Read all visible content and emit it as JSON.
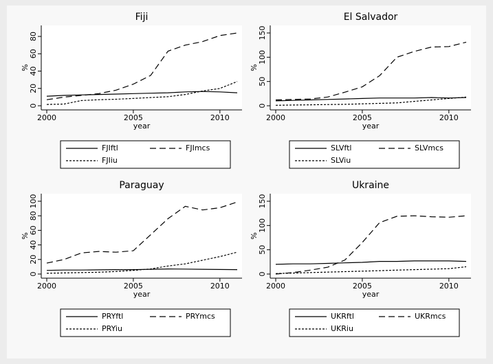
{
  "chart_data": [
    {
      "type": "line",
      "title": "Fiji",
      "xlabel": "year",
      "ylabel": "%",
      "x": [
        2000,
        2001,
        2002,
        2003,
        2004,
        2005,
        2006,
        2007,
        2008,
        2009,
        2010,
        2011
      ],
      "xlim": [
        2000,
        2011
      ],
      "xticks": [
        2000,
        2005,
        2010
      ],
      "ylim": [
        0,
        84
      ],
      "yticks": [
        0,
        20,
        40,
        60,
        80
      ],
      "series": [
        {
          "name": "FJIftl",
          "color": "#000000",
          "line_style": "solid",
          "values": [
            11,
            12,
            12.5,
            13,
            13.5,
            14,
            14.5,
            15,
            16,
            16.5,
            16,
            15
          ]
        },
        {
          "name": "FJImcs",
          "color": "#000000",
          "line_style": "dash",
          "values": [
            7,
            10,
            12,
            14,
            18,
            25,
            35,
            63,
            70,
            74,
            81,
            84
          ]
        },
        {
          "name": "FJIiu",
          "color": "#000000",
          "line_style": "dot",
          "values": [
            1.5,
            2,
            6,
            7,
            7.5,
            8.5,
            9.5,
            10.5,
            13,
            17,
            20,
            28
          ]
        }
      ]
    },
    {
      "type": "line",
      "title": "El Salvador",
      "xlabel": "year",
      "ylabel": "%",
      "x": [
        2000,
        2001,
        2002,
        2003,
        2004,
        2005,
        2006,
        2007,
        2008,
        2009,
        2010,
        2011
      ],
      "xlim": [
        2000,
        2011
      ],
      "xticks": [
        2000,
        2005,
        2010
      ],
      "ylim": [
        0,
        150
      ],
      "yticks": [
        0,
        50,
        100,
        150
      ],
      "series": [
        {
          "name": "SLVftl",
          "color": "#000000",
          "line_style": "solid",
          "values": [
            10,
            11,
            12,
            13,
            14,
            15,
            16,
            16,
            16,
            17,
            16,
            17
          ]
        },
        {
          "name": "SLVmcs",
          "color": "#000000",
          "line_style": "dash",
          "values": [
            12,
            13,
            14,
            18,
            28,
            39,
            62,
            100,
            112,
            121,
            122,
            131
          ]
        },
        {
          "name": "SLViu",
          "color": "#000000",
          "line_style": "dot",
          "values": [
            1,
            1.5,
            2,
            2.5,
            3,
            4,
            5,
            6,
            9,
            12,
            15,
            18
          ]
        }
      ]
    },
    {
      "type": "line",
      "title": "Paraguay",
      "xlabel": "year",
      "ylabel": "%",
      "x": [
        2000,
        2001,
        2002,
        2003,
        2004,
        2005,
        2006,
        2007,
        2008,
        2009,
        2010,
        2011
      ],
      "xlim": [
        2000,
        2011
      ],
      "xticks": [
        2000,
        2005,
        2010
      ],
      "ylim": [
        0,
        100
      ],
      "yticks": [
        0,
        20,
        40,
        60,
        80,
        100
      ],
      "series": [
        {
          "name": "PRYftl",
          "color": "#000000",
          "line_style": "solid",
          "values": [
            5,
            5.5,
            5.5,
            5.8,
            6,
            6,
            6.5,
            7,
            6.8,
            6.5,
            6.2,
            6
          ]
        },
        {
          "name": "PRYmcs",
          "color": "#000000",
          "line_style": "dash",
          "values": [
            15,
            20,
            29,
            31,
            30,
            32,
            54,
            76,
            93,
            88,
            91,
            99
          ]
        },
        {
          "name": "PRYiu",
          "color": "#000000",
          "line_style": "dot",
          "values": [
            1,
            1.5,
            2,
            2.5,
            3.5,
            5,
            7,
            11,
            14,
            19,
            24,
            30
          ]
        }
      ]
    },
    {
      "type": "line",
      "title": "Ukraine",
      "xlabel": "year",
      "ylabel": "%",
      "x": [
        2000,
        2001,
        2002,
        2003,
        2004,
        2005,
        2006,
        2007,
        2008,
        2009,
        2010,
        2011
      ],
      "xlim": [
        2000,
        2011
      ],
      "xticks": [
        2000,
        2005,
        2010
      ],
      "ylim": [
        0,
        150
      ],
      "yticks": [
        0,
        50,
        100,
        150
      ],
      "series": [
        {
          "name": "UKRftl",
          "color": "#000000",
          "line_style": "solid",
          "values": [
            20,
            21,
            21,
            22,
            23,
            24,
            26,
            26,
            27,
            27,
            27,
            26
          ]
        },
        {
          "name": "UKRmcs",
          "color": "#000000",
          "line_style": "dash",
          "values": [
            0,
            3,
            8,
            14,
            29,
            65,
            106,
            119,
            120,
            118,
            117,
            120
          ]
        },
        {
          "name": "UKRiu",
          "color": "#000000",
          "line_style": "dot",
          "values": [
            1,
            2,
            3,
            4,
            5,
            6,
            7,
            8,
            9,
            10,
            11,
            15
          ]
        }
      ]
    }
  ]
}
